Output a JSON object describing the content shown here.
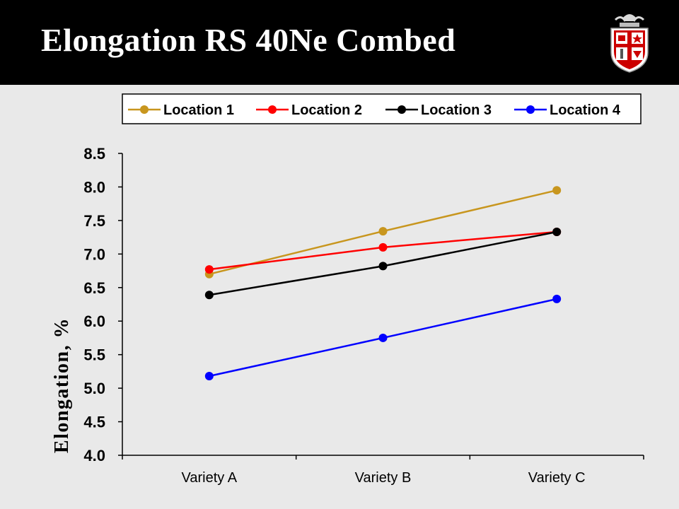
{
  "slide": {
    "title": "Elongation RS 40Ne Combed"
  },
  "logo": {
    "name": "university-shield-logo"
  },
  "chart_data": {
    "type": "line",
    "title": "",
    "xlabel": "",
    "ylabel": "Elongation, %",
    "categories": [
      "Variety A",
      "Variety B",
      "Variety C"
    ],
    "ylim": [
      4.0,
      8.5
    ],
    "yticks": [
      "4.0",
      "4.5",
      "5.0",
      "5.5",
      "6.0",
      "6.5",
      "7.0",
      "7.5",
      "8.0",
      "8.5"
    ],
    "grid": false,
    "legend_position": "top",
    "series": [
      {
        "name": "Location 1",
        "color": "#c8961e",
        "values": [
          6.7,
          7.34,
          7.95
        ]
      },
      {
        "name": "Location 2",
        "color": "#ff0000",
        "values": [
          6.77,
          7.1,
          7.33
        ]
      },
      {
        "name": "Location 3",
        "color": "#000000",
        "values": [
          6.39,
          6.82,
          7.33
        ]
      },
      {
        "name": "Location 4",
        "color": "#0000ff",
        "values": [
          5.18,
          5.75,
          6.33
        ]
      }
    ]
  }
}
